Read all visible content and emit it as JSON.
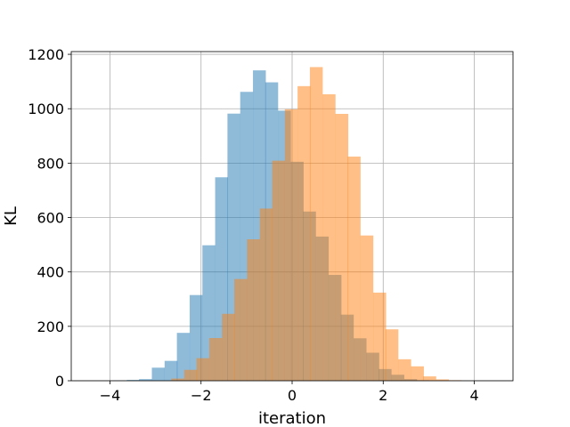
{
  "chart_data": {
    "type": "bar",
    "title": "",
    "xlabel": "iteration",
    "ylabel": "KL",
    "xlim": [
      -4.85,
      4.85
    ],
    "ylim": [
      0,
      1210
    ],
    "xticks": [
      -4,
      -2,
      0,
      2,
      4
    ],
    "xtick_labels": [
      "−4",
      "−2",
      "0",
      "2",
      "4"
    ],
    "yticks": [
      0,
      200,
      400,
      600,
      800,
      1000,
      1200
    ],
    "ytick_labels": [
      "0",
      "200",
      "400",
      "600",
      "800",
      "1000",
      "1200"
    ],
    "grid": true,
    "legend": "none",
    "bin_width": 0.277,
    "series": [
      {
        "color": "#1f77b4",
        "opacity": 0.5,
        "bins": [
          [
            -3.91,
            1
          ],
          [
            -3.63,
            3
          ],
          [
            -3.36,
            6
          ],
          [
            -3.08,
            48
          ],
          [
            -2.8,
            73
          ],
          [
            -2.53,
            176
          ],
          [
            -2.25,
            315
          ],
          [
            -1.97,
            498
          ],
          [
            -1.69,
            748
          ],
          [
            -1.42,
            982
          ],
          [
            -1.14,
            1062
          ],
          [
            -0.86,
            1141
          ],
          [
            -0.59,
            1097
          ],
          [
            -0.31,
            993
          ],
          [
            -0.03,
            805
          ],
          [
            0.24,
            622
          ],
          [
            0.52,
            530
          ],
          [
            0.8,
            389
          ],
          [
            1.07,
            243
          ],
          [
            1.35,
            156
          ],
          [
            1.63,
            103
          ],
          [
            1.9,
            43
          ],
          [
            2.18,
            22
          ],
          [
            2.46,
            6
          ],
          [
            2.73,
            2
          ]
        ]
      },
      {
        "color": "#ff7f0e",
        "opacity": 0.5,
        "bins": [
          [
            -2.65,
            8
          ],
          [
            -2.37,
            40
          ],
          [
            -2.1,
            83
          ],
          [
            -1.82,
            157
          ],
          [
            -1.54,
            246
          ],
          [
            -1.27,
            374
          ],
          [
            -0.99,
            520
          ],
          [
            -0.71,
            633
          ],
          [
            -0.44,
            809
          ],
          [
            -0.16,
            998
          ],
          [
            0.12,
            1083
          ],
          [
            0.39,
            1153
          ],
          [
            0.67,
            1053
          ],
          [
            0.95,
            981
          ],
          [
            1.22,
            824
          ],
          [
            1.5,
            534
          ],
          [
            1.78,
            324
          ],
          [
            2.05,
            189
          ],
          [
            2.33,
            79
          ],
          [
            2.61,
            53
          ],
          [
            2.88,
            16
          ],
          [
            3.16,
            5
          ],
          [
            3.44,
            2
          ]
        ]
      }
    ]
  }
}
